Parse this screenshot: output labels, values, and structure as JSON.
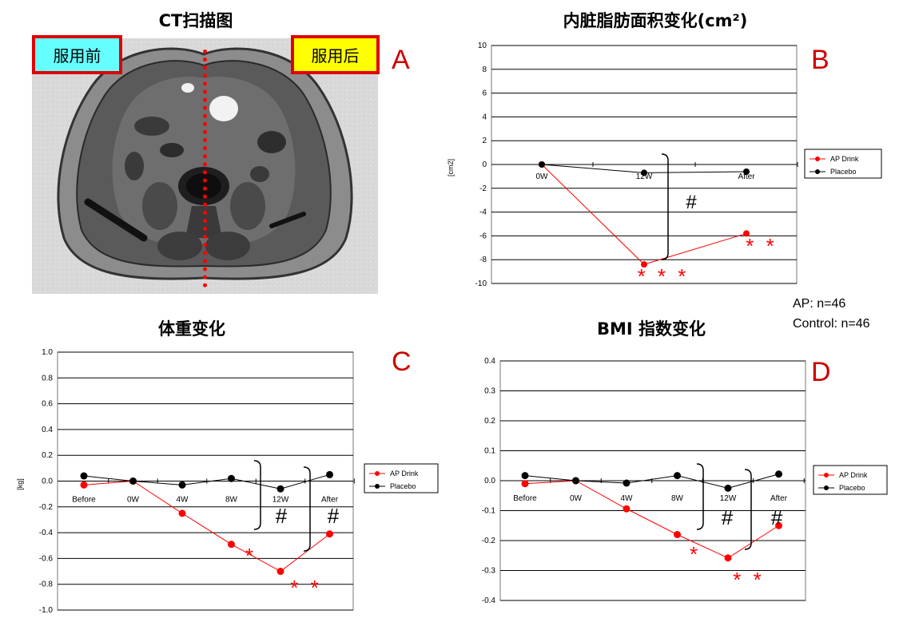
{
  "panel_a": {
    "title": "CT扫描图",
    "label": "A",
    "before_tag": "服用前",
    "after_tag": "服用后"
  },
  "panel_b": {
    "title": "内脏脂肪面积变化(cm²)",
    "label": "B"
  },
  "panel_c": {
    "title": "体重变化",
    "label": "C"
  },
  "panel_d": {
    "title": "BMI 指数变化",
    "label": "D"
  },
  "sample_note": {
    "ap": "AP: n=46",
    "control": "Control: n=46"
  },
  "colors": {
    "ap": "#ff0000",
    "placebo": "#000000",
    "tag_border": "#e00000",
    "before_tag_bg": "#66ffff",
    "after_tag_bg": "#ffff00"
  },
  "chart_data": [
    {
      "type": "line",
      "ylabel": "[cm2]",
      "categories": [
        "0W",
        "12W",
        "After"
      ],
      "ylim": [
        -10,
        10
      ],
      "yticks": [
        "10",
        "8",
        "6",
        "4",
        "2",
        "0",
        "-2",
        "-4",
        "-6",
        "-8",
        "-10"
      ],
      "series": [
        {
          "name": "AP Drink",
          "values": [
            0,
            -8.4,
            -5.8
          ]
        },
        {
          "name": "Placebo",
          "values": [
            0,
            -0.7,
            -0.6
          ]
        }
      ],
      "annotations": [
        "# ",
        "* * *",
        "* *"
      ],
      "grid": true,
      "legend": "right"
    },
    {
      "type": "line",
      "ylabel": "[kg]",
      "categories": [
        "Before",
        "0W",
        "4W",
        "8W",
        "12W",
        "After"
      ],
      "ylim": [
        -1.0,
        1.0
      ],
      "yticks": [
        "1.0",
        "0.8",
        "0.6",
        "0.4",
        "0.2",
        "0.0",
        "-0.2",
        "-0.4",
        "-0.6",
        "-0.8",
        "-1.0"
      ],
      "series": [
        {
          "name": "AP Drink",
          "values": [
            -0.03,
            0,
            -0.25,
            -0.49,
            -0.7,
            -0.41
          ]
        },
        {
          "name": "Placebo",
          "values": [
            0.04,
            0,
            -0.03,
            0.02,
            -0.06,
            0.05
          ]
        }
      ],
      "annotations": [
        "#",
        "#",
        "*",
        "* *"
      ],
      "grid": true,
      "legend": "right"
    },
    {
      "type": "line",
      "ylabel": "",
      "categories": [
        "Before",
        "0W",
        "4W",
        "8W",
        "12W",
        "After"
      ],
      "ylim": [
        -0.4,
        0.4
      ],
      "yticks": [
        "0.4",
        "0.3",
        "0.2",
        "0.1",
        "0.0",
        "-0.1",
        "-0.2",
        "-0.3",
        "-0.4"
      ],
      "series": [
        {
          "name": "AP Drink",
          "values": [
            -0.01,
            0,
            -0.094,
            -0.18,
            -0.258,
            -0.15
          ]
        },
        {
          "name": "Placebo",
          "values": [
            0.017,
            0,
            -0.008,
            0.017,
            -0.025,
            0.022
          ]
        }
      ],
      "annotations": [
        "#",
        "#",
        "*",
        "* *"
      ],
      "grid": true,
      "legend": "right"
    }
  ]
}
